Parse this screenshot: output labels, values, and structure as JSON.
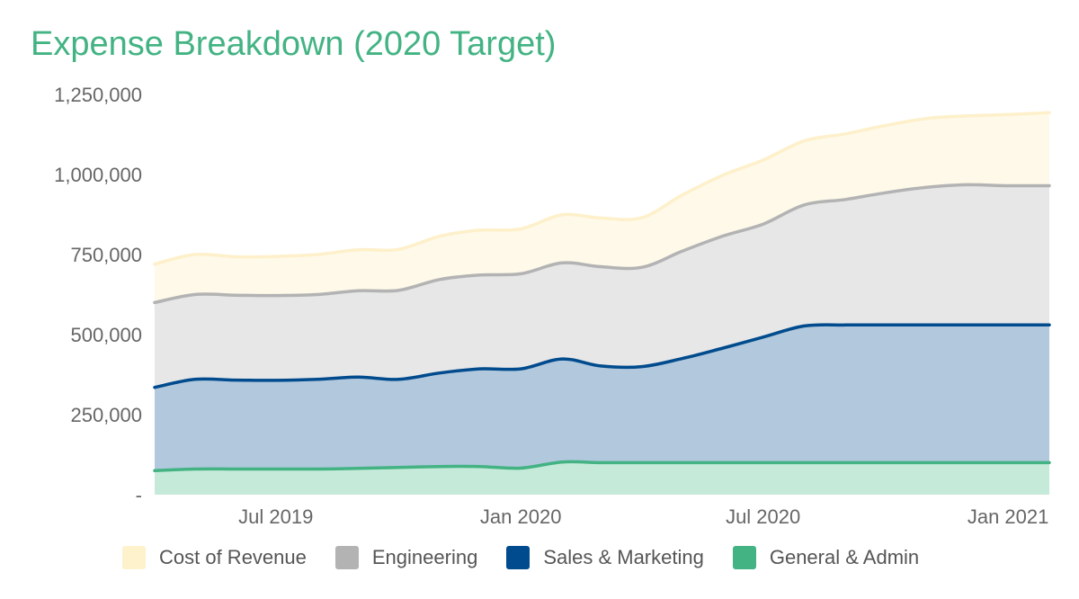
{
  "chart_data": {
    "type": "area",
    "stacked": true,
    "title": "Expense Breakdown (2020 Target)",
    "xlabel": "",
    "ylabel": "",
    "x": [
      "2019-04-01",
      "2019-05-01",
      "2019-06-01",
      "2019-07-01",
      "2019-08-01",
      "2019-09-01",
      "2019-10-01",
      "2019-11-01",
      "2019-12-01",
      "2020-01-01",
      "2020-02-01",
      "2020-03-01",
      "2020-04-01",
      "2020-05-01",
      "2020-06-01",
      "2020-07-01",
      "2020-08-01",
      "2020-09-01",
      "2020-10-01",
      "2020-11-01",
      "2020-12-01",
      "2021-01-01",
      "2021-02-01"
    ],
    "x_tick_labels": [
      "Jul 2019",
      "Jan 2020",
      "Jul 2020",
      "Jan 2021"
    ],
    "x_tick_positions": [
      "2019-07-01",
      "2020-01-01",
      "2020-07-01",
      "2021-01-01"
    ],
    "y_tick_labels": [
      "-",
      "250,000",
      "500,000",
      "750,000",
      "1,000,000",
      "1,250,000"
    ],
    "y_tick_values": [
      0,
      250000,
      500000,
      750000,
      1000000,
      1250000
    ],
    "ylim": [
      0,
      1250000
    ],
    "grid": false,
    "legend_position": "bottom",
    "series": [
      {
        "name": "General & Admin",
        "color": "#43b383",
        "fill": "#c6ead9",
        "values": [
          75000,
          80000,
          80000,
          80000,
          80000,
          82000,
          85000,
          88000,
          88000,
          83000,
          102000,
          100000,
          100000,
          100000,
          100000,
          100000,
          100000,
          100000,
          100000,
          100000,
          100000,
          100000,
          100000
        ]
      },
      {
        "name": "Sales & Marketing",
        "color": "#004b8d",
        "fill": "#b1c8dd",
        "values": [
          260000,
          280000,
          278000,
          277000,
          280000,
          285000,
          275000,
          292000,
          305000,
          310000,
          322000,
          302000,
          300000,
          325000,
          358000,
          392000,
          427000,
          430000,
          430000,
          430000,
          430000,
          430000,
          430000
        ]
      },
      {
        "name": "Engineering",
        "color": "#b3b3b3",
        "fill": "#e7e7e7",
        "values": [
          265000,
          265000,
          265000,
          265000,
          265000,
          270000,
          278000,
          292000,
          293000,
          297000,
          300000,
          310000,
          310000,
          335000,
          350000,
          353000,
          378000,
          392000,
          413000,
          430000,
          438000,
          435000,
          435000
        ]
      },
      {
        "name": "Cost of Revenue",
        "color": "#fdf0ca",
        "fill": "#fef9e9",
        "values": [
          120000,
          125000,
          120000,
          122000,
          125000,
          128000,
          128000,
          135000,
          140000,
          140000,
          150000,
          152000,
          155000,
          175000,
          190000,
          200000,
          200000,
          205000,
          210000,
          215000,
          215000,
          222000,
          228000
        ]
      }
    ]
  }
}
